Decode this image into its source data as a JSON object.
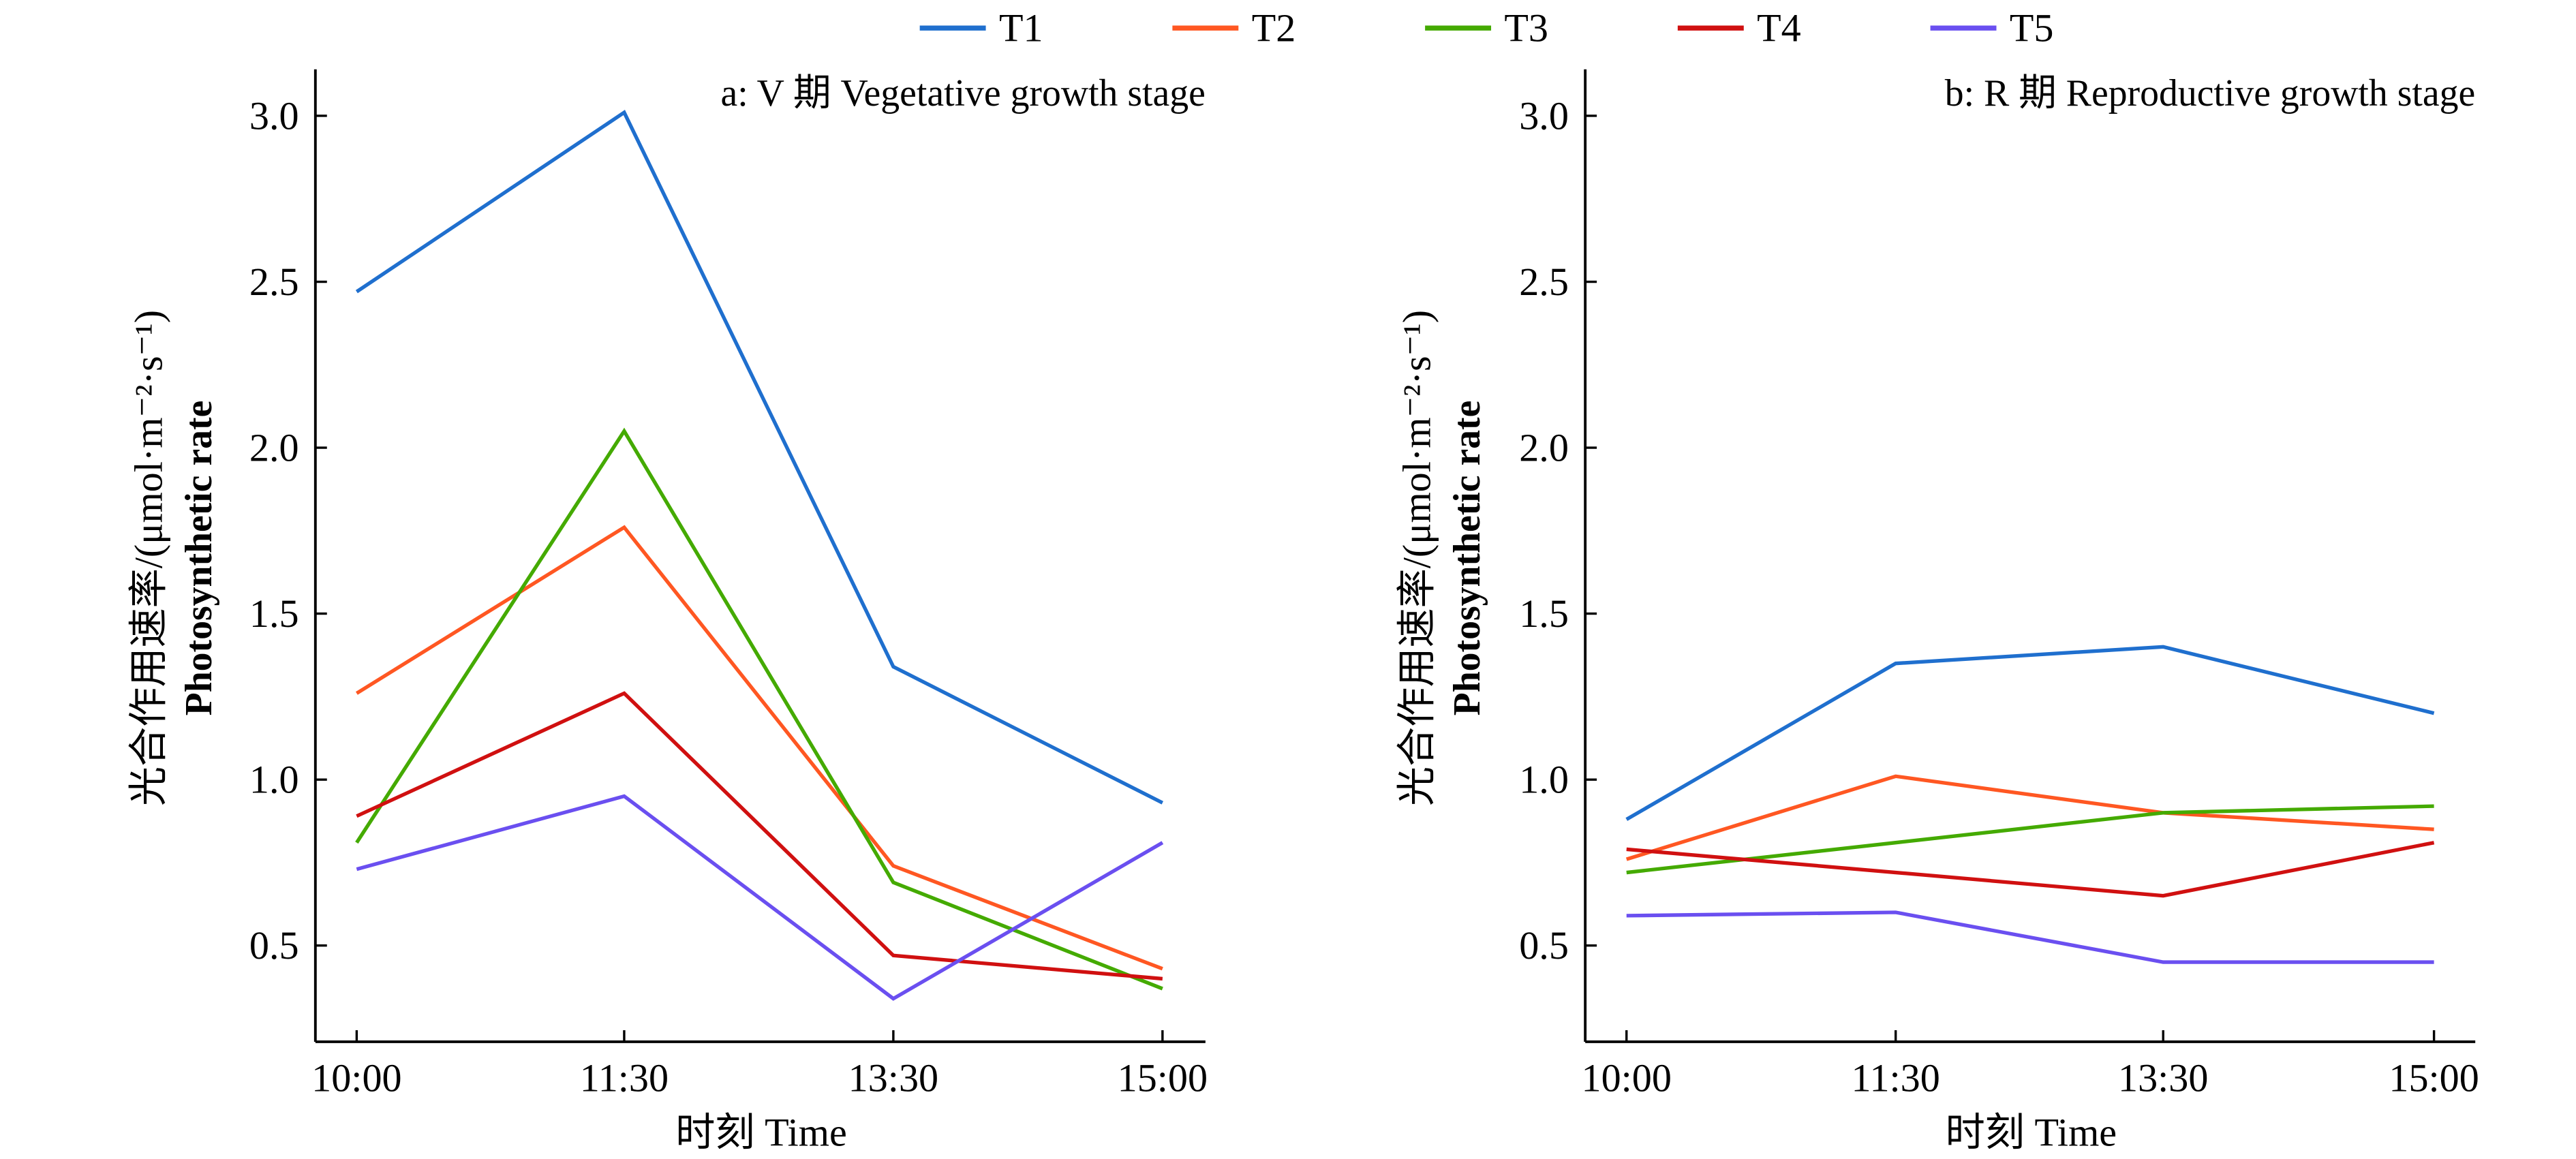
{
  "legend": {
    "items": [
      {
        "name": "T1",
        "color": "#1f6fce"
      },
      {
        "name": "T2",
        "color": "#ff5722"
      },
      {
        "name": "T3",
        "color": "#44aa00"
      },
      {
        "name": "T4",
        "color": "#d01010"
      },
      {
        "name": "T5",
        "color": "#6a4ff0"
      }
    ]
  },
  "chart_data": [
    {
      "type": "line",
      "panel": "a",
      "title": "a: V 期 Vegetative growth stage",
      "xlabel": "时刻 Time",
      "ylabel": "光合作用速率/(μmol·m⁻²·s⁻¹)",
      "ylabel_en": "Photosynthetic rate",
      "categories": [
        "10:00",
        "11:30",
        "13:30",
        "15:00"
      ],
      "yticks": [
        "0.5",
        "1.0",
        "1.5",
        "2.0",
        "2.5",
        "3.0"
      ],
      "ylim": [
        0.21,
        3.14
      ],
      "grid": false,
      "legend_position": "top-center",
      "series": [
        {
          "name": "T1",
          "values": [
            2.47,
            3.01,
            1.34,
            0.93
          ]
        },
        {
          "name": "T2",
          "values": [
            1.26,
            1.76,
            0.74,
            0.43
          ]
        },
        {
          "name": "T3",
          "values": [
            0.81,
            2.05,
            0.69,
            0.37
          ]
        },
        {
          "name": "T4",
          "values": [
            0.89,
            1.26,
            0.47,
            0.4
          ]
        },
        {
          "name": "T5",
          "values": [
            0.73,
            0.95,
            0.34,
            0.81
          ]
        }
      ]
    },
    {
      "type": "line",
      "panel": "b",
      "title": "b: R 期 Reproductive growth stage",
      "xlabel": "时刻 Time",
      "ylabel": "光合作用速率/(μmol·m⁻²·s⁻¹)",
      "ylabel_en": "Photosynthetic rate",
      "categories": [
        "10:00",
        "11:30",
        "13:30",
        "15:00"
      ],
      "yticks": [
        "0.5",
        "1.0",
        "1.5",
        "2.0",
        "2.5",
        "3.0"
      ],
      "ylim": [
        0.21,
        3.14
      ],
      "grid": false,
      "legend_position": "top-center",
      "series": [
        {
          "name": "T1",
          "values": [
            0.88,
            1.35,
            1.4,
            1.2
          ]
        },
        {
          "name": "T2",
          "values": [
            0.76,
            1.01,
            0.9,
            0.85
          ]
        },
        {
          "name": "T3",
          "values": [
            0.72,
            0.81,
            0.9,
            0.92
          ]
        },
        {
          "name": "T4",
          "values": [
            0.79,
            0.72,
            0.65,
            0.81
          ]
        },
        {
          "name": "T5",
          "values": [
            0.59,
            0.6,
            0.45,
            0.45
          ]
        }
      ]
    }
  ]
}
